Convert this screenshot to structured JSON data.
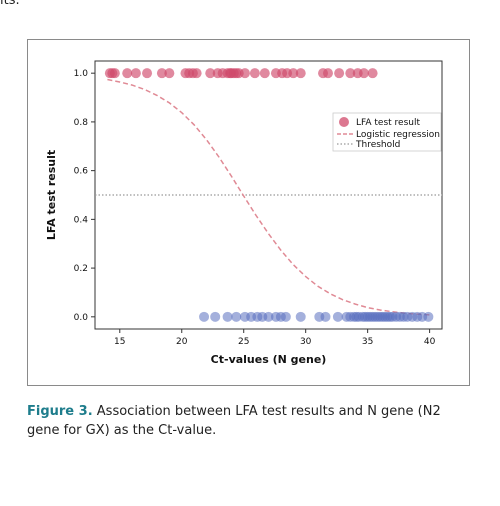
{
  "page": {
    "top_fragment": "lts.",
    "caption": {
      "label": "Figure 3.",
      "text": " Association between LFA test results and N gene (N2 gene for GX) as the Ct-value."
    }
  },
  "chart_data": {
    "type": "scatter",
    "title": "",
    "xlabel": "Ct-values (N gene)",
    "ylabel": "LFA test result",
    "xlim": [
      13,
      41
    ],
    "ylim": [
      -0.05,
      1.05
    ],
    "xticks": [
      15,
      20,
      25,
      30,
      35,
      40
    ],
    "yticks": [
      0.0,
      0.2,
      0.4,
      0.6,
      0.8,
      1.0
    ],
    "xtick_labels": [
      "15",
      "20",
      "25",
      "30",
      "35",
      "40"
    ],
    "ytick_labels": [
      "0.0",
      "0.2",
      "0.4",
      "0.6",
      "0.8",
      "1.0"
    ],
    "grid": false,
    "legend_position": "upper-right",
    "series": [
      {
        "name": "LFA test result",
        "kind": "scatter",
        "colors": {
          "positive": "#d04a6b",
          "negative": "#5a6fc0"
        },
        "positive_x": [
          14.2,
          14.4,
          14.6,
          15.6,
          16.3,
          17.2,
          18.4,
          19.0,
          20.3,
          20.6,
          20.9,
          21.2,
          22.3,
          22.9,
          23.3,
          23.7,
          23.9,
          24.0,
          24.2,
          24.4,
          24.6,
          25.1,
          25.9,
          26.7,
          27.6,
          28.1,
          28.5,
          29.0,
          29.6,
          31.4,
          31.8,
          32.7,
          33.6,
          34.2,
          34.7,
          35.4
        ],
        "positive_y": 1.0,
        "negative_x": [
          21.8,
          22.7,
          23.7,
          24.4,
          25.1,
          25.6,
          26.1,
          26.5,
          27.0,
          27.6,
          28.0,
          28.4,
          29.6,
          31.1,
          31.6,
          32.6,
          33.3,
          33.6,
          33.9,
          34.1,
          34.3,
          34.6,
          34.8,
          35.0,
          35.2,
          35.4,
          35.6,
          35.8,
          36.0,
          36.2,
          36.4,
          36.6,
          36.8,
          37.0,
          37.3,
          37.6,
          37.9,
          38.2,
          38.6,
          39.0,
          39.4,
          39.9
        ],
        "negative_y": 0.0
      },
      {
        "name": "Logistic regression",
        "kind": "line",
        "color": "#e08a95",
        "style": "dashed",
        "x": [
          14,
          15,
          16,
          17,
          18,
          19,
          20,
          21,
          22,
          23,
          24,
          25,
          26,
          27,
          28,
          29,
          30,
          31,
          32,
          33,
          34,
          35,
          36,
          37,
          38,
          39,
          40
        ],
        "y": [
          0.974,
          0.964,
          0.951,
          0.933,
          0.909,
          0.878,
          0.838,
          0.788,
          0.727,
          0.656,
          0.578,
          0.496,
          0.416,
          0.341,
          0.273,
          0.214,
          0.165,
          0.125,
          0.094,
          0.07,
          0.052,
          0.038,
          0.028,
          0.021,
          0.015,
          0.011,
          0.008
        ]
      },
      {
        "name": "Threshold",
        "kind": "hline",
        "color": "#999999",
        "style": "dotted",
        "y": 0.5
      }
    ]
  }
}
